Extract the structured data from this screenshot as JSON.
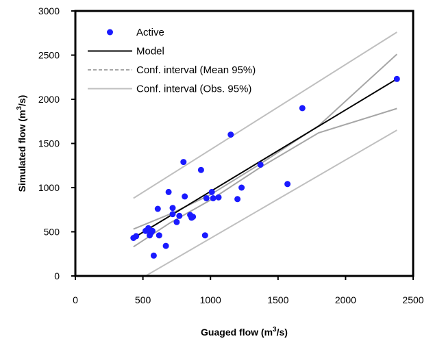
{
  "chart_data": {
    "type": "scatter",
    "xlabel": "Guaged flow (m",
    "xlabel_sup": "3",
    "xlabel_end": "/s)",
    "ylabel": "Simulated flow (m",
    "ylabel_sup": "3",
    "ylabel_end": "/s)",
    "xlim": [
      0,
      2500
    ],
    "ylim": [
      0,
      3000
    ],
    "xticks": [
      0,
      500,
      1000,
      1500,
      2000,
      2500
    ],
    "yticks": [
      0,
      500,
      1000,
      1500,
      2000,
      2500,
      3000
    ],
    "xtick_labels": [
      "0",
      "500",
      "1000",
      "1500",
      "2000",
      "2500"
    ],
    "ytick_labels": [
      "0",
      "500",
      "1000",
      "1500",
      "2000",
      "2500",
      "3000"
    ],
    "grid": false,
    "legend_position": "top-left",
    "legend": [
      {
        "label": "Active",
        "kind": "marker",
        "color": "#1a1aff"
      },
      {
        "label": "Model",
        "kind": "line",
        "color": "#000000"
      },
      {
        "label": "Conf. interval (Mean 95%)",
        "kind": "dashed",
        "color": "#a6a6a6"
      },
      {
        "label": "Conf. interval (Obs. 95%)",
        "kind": "line",
        "color": "#bfbfbf"
      }
    ],
    "series": [
      {
        "name": "Active",
        "color": "#1a1aff",
        "points": [
          [
            430,
            430
          ],
          [
            450,
            450
          ],
          [
            520,
            510
          ],
          [
            540,
            540
          ],
          [
            550,
            460
          ],
          [
            560,
            490
          ],
          [
            570,
            510
          ],
          [
            580,
            230
          ],
          [
            610,
            760
          ],
          [
            620,
            460
          ],
          [
            670,
            340
          ],
          [
            690,
            950
          ],
          [
            720,
            770
          ],
          [
            720,
            700
          ],
          [
            750,
            610
          ],
          [
            770,
            680
          ],
          [
            800,
            1290
          ],
          [
            810,
            900
          ],
          [
            850,
            690
          ],
          [
            860,
            660
          ],
          [
            870,
            670
          ],
          [
            930,
            1200
          ],
          [
            960,
            460
          ],
          [
            970,
            880
          ],
          [
            1010,
            950
          ],
          [
            1020,
            880
          ],
          [
            1060,
            890
          ],
          [
            1150,
            1600
          ],
          [
            1200,
            870
          ],
          [
            1230,
            1000
          ],
          [
            1370,
            1260
          ],
          [
            1570,
            1040
          ],
          [
            1680,
            1900
          ],
          [
            2380,
            2230
          ]
        ]
      },
      {
        "name": "Model",
        "color": "#000000",
        "points": [
          [
            430,
            430
          ],
          [
            2380,
            2230
          ]
        ]
      },
      {
        "name": "Conf. interval (Mean 95%)",
        "color": "#a6a6a6",
        "lines": [
          [
            [
              430,
              530
            ],
            [
              700,
              700
            ],
            [
              1000,
              920
            ],
            [
              1370,
              1270
            ],
            [
              1800,
              1700
            ],
            [
              2380,
              2510
            ]
          ],
          [
            [
              430,
              330
            ],
            [
              700,
              600
            ],
            [
              1000,
              860
            ],
            [
              1370,
              1230
            ],
            [
              1800,
              1620
            ],
            [
              2380,
              1895
            ]
          ]
        ]
      },
      {
        "name": "Conf. interval (Obs. 95%)",
        "color": "#bfbfbf",
        "lines": [
          [
            [
              430,
              880
            ],
            [
              2380,
              2760
            ]
          ],
          [
            [
              520,
              0
            ],
            [
              2380,
              1650
            ]
          ]
        ]
      }
    ]
  }
}
